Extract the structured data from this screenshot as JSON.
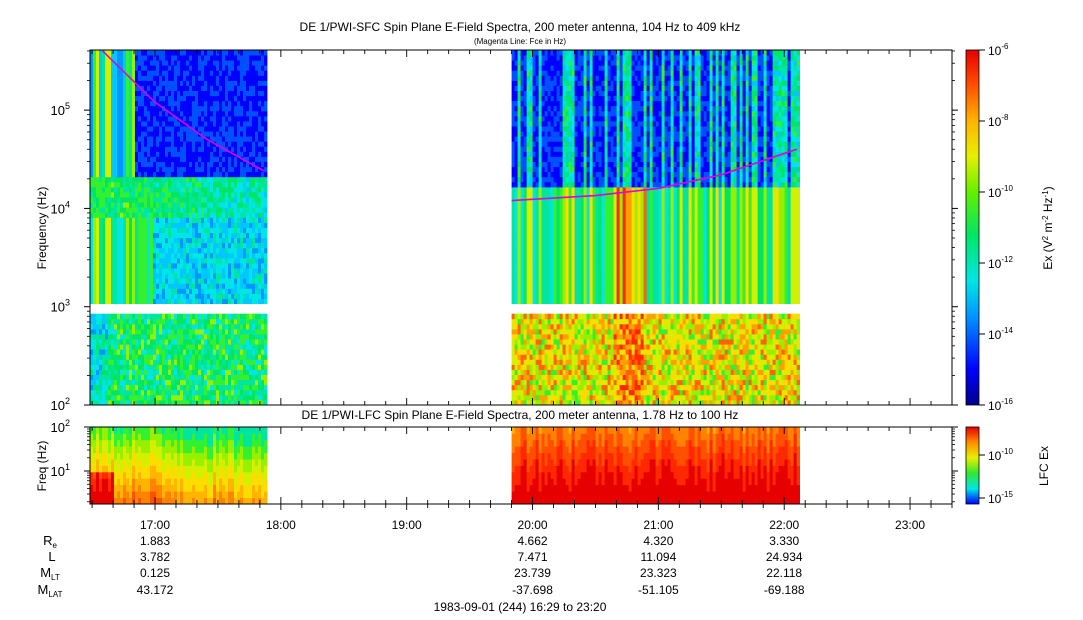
{
  "chart_data": [
    {
      "type": "heatmap",
      "title": "DE 1/PWI-SFC  Spin Plane E-Field Spectra, 200 meter antenna, 104 Hz to 409 kHz",
      "subtitle": "(Magenta Line: Fce in Hz)",
      "ylabel": "Frequency (Hz)",
      "y_scale": "log",
      "ylim": [
        100,
        409000
      ],
      "y_ticks": [
        {
          "value": 100,
          "label": "10",
          "exp": "2"
        },
        {
          "value": 1000,
          "label": "10",
          "exp": "3"
        },
        {
          "value": 10000,
          "label": "10",
          "exp": "4"
        },
        {
          "value": 100000,
          "label": "10",
          "exp": "5"
        }
      ],
      "data_blocks": [
        {
          "start": "16:29",
          "end": "17:52"
        },
        {
          "start": "19:50",
          "end": "22:06"
        }
      ],
      "band_gap_hz": [
        900,
        1000
      ],
      "fce_line": [
        {
          "t": "16:35",
          "f": 400000
        },
        {
          "t": "17:00",
          "f": 120000
        },
        {
          "t": "17:25",
          "f": 50000
        },
        {
          "t": "17:52",
          "f": 24000
        },
        {
          "t": "19:50",
          "f": 12000
        },
        {
          "t": "20:30",
          "f": 13500
        },
        {
          "t": "21:00",
          "f": 16000
        },
        {
          "t": "21:30",
          "f": 22000
        },
        {
          "t": "22:06",
          "f": 40000
        }
      ],
      "colorbar": {
        "label": "Ex (V",
        "label_sup1": "2",
        "label_mid": " m",
        "label_sup2": "-2",
        "label_mid2": " Hz",
        "label_sup3": "-1",
        "label_end": ")",
        "scale": "log",
        "range": [
          1e-16,
          1e-06
        ],
        "ticks": [
          {
            "label": "10",
            "exp": "-6"
          },
          {
            "label": "10",
            "exp": "-8"
          },
          {
            "label": "10",
            "exp": "-10"
          },
          {
            "label": "10",
            "exp": "-12"
          },
          {
            "label": "10",
            "exp": "-14"
          },
          {
            "label": "10",
            "exp": "-16"
          }
        ]
      }
    },
    {
      "type": "heatmap",
      "title": "DE 1/PWI-LFC  Spin Plane E-Field Spectra, 200 meter antenna, 1.78 Hz to 100 Hz",
      "ylabel": "Freq (Hz)",
      "y_scale": "log",
      "ylim": [
        1.78,
        100
      ],
      "y_ticks": [
        {
          "value": 10,
          "label": "10",
          "exp": "1"
        },
        {
          "value": 100,
          "label": "10",
          "exp": "2"
        }
      ],
      "data_blocks": [
        {
          "start": "16:29",
          "end": "17:52"
        },
        {
          "start": "19:50",
          "end": "22:06"
        }
      ],
      "colorbar": {
        "label": "LFC Ex",
        "scale": "log",
        "ticks": [
          {
            "label": "10",
            "exp": "-10"
          },
          {
            "label": "10",
            "exp": "-15"
          }
        ]
      }
    }
  ],
  "x_axis": {
    "xlim": [
      "16:29",
      "23:20"
    ],
    "tick_labels": [
      "17:00",
      "18:00",
      "19:00",
      "20:00",
      "21:00",
      "22:00",
      "23:00"
    ]
  },
  "ephemeris": {
    "rows": [
      {
        "label": "R",
        "sub": "e",
        "values": [
          "1.883",
          "",
          "",
          "4.662",
          "4.320",
          "3.330",
          ""
        ]
      },
      {
        "label": "L",
        "sub": "",
        "values": [
          "3.782",
          "",
          "",
          "7.471",
          "11.094",
          "24.934",
          ""
        ]
      },
      {
        "label": "M",
        "sub": "LT",
        "values": [
          "0.125",
          "",
          "",
          "23.739",
          "23.323",
          "22.118",
          ""
        ]
      },
      {
        "label": "M",
        "sub": "LAT",
        "values": [
          "43.172",
          "",
          "",
          "-37.698",
          "-51.105",
          "-69.188",
          ""
        ]
      }
    ]
  },
  "footer": "1983-09-01 (244) 16:29 to 23:20"
}
